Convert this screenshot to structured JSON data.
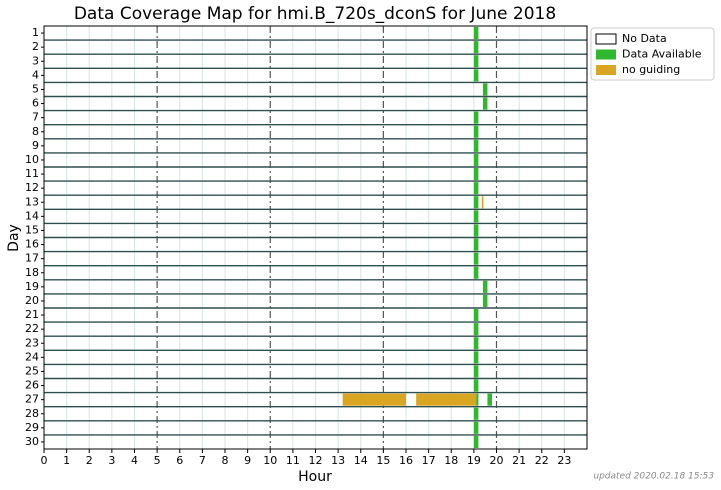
{
  "chart_data": {
    "type": "coverage",
    "title": "Data Coverage Map for hmi.B_720s_dconS for June 2018",
    "x_label": "Hour",
    "y_label": "Day",
    "footer": "updated 2020.02.18 15:53",
    "categories": [
      "1",
      "2",
      "3",
      "4",
      "5",
      "6",
      "7",
      "8",
      "9",
      "10",
      "11",
      "12",
      "13",
      "14",
      "15",
      "16",
      "17",
      "18",
      "19",
      "20",
      "21",
      "22",
      "23",
      "24",
      "25",
      "26",
      "27",
      "28",
      "29",
      "30"
    ],
    "xlim": [
      0,
      24
    ],
    "xticks": [
      0,
      1,
      2,
      3,
      4,
      5,
      6,
      7,
      8,
      9,
      10,
      11,
      12,
      13,
      14,
      15,
      16,
      17,
      18,
      19,
      20,
      21,
      22,
      23
    ],
    "series": [
      {
        "name": "No Data",
        "color": "#ffffff"
      },
      {
        "name": "Data Available",
        "color": "#2db82d",
        "values": [
          [
            [
              19.0,
              19.2
            ]
          ],
          [
            [
              19.0,
              19.2
            ]
          ],
          [
            [
              19.0,
              19.2
            ]
          ],
          [
            [
              19.0,
              19.2
            ]
          ],
          [
            [
              19.4,
              19.6
            ]
          ],
          [
            [
              19.4,
              19.6
            ]
          ],
          [
            [
              19.0,
              19.2
            ]
          ],
          [
            [
              19.0,
              19.2
            ]
          ],
          [
            [
              19.0,
              19.2
            ]
          ],
          [
            [
              19.0,
              19.2
            ]
          ],
          [
            [
              19.0,
              19.2
            ]
          ],
          [
            [
              19.0,
              19.2
            ]
          ],
          [
            [
              19.0,
              19.2
            ]
          ],
          [
            [
              19.0,
              19.2
            ]
          ],
          [
            [
              19.0,
              19.2
            ]
          ],
          [
            [
              19.0,
              19.2
            ]
          ],
          [
            [
              19.0,
              19.2
            ]
          ],
          [
            [
              19.0,
              19.2
            ]
          ],
          [
            [
              19.4,
              19.6
            ]
          ],
          [
            [
              19.4,
              19.6
            ]
          ],
          [
            [
              19.0,
              19.2
            ]
          ],
          [
            [
              19.0,
              19.2
            ]
          ],
          [
            [
              19.0,
              19.2
            ]
          ],
          [
            [
              19.0,
              19.2
            ]
          ],
          [
            [
              19.0,
              19.2
            ]
          ],
          [
            [
              19.0,
              19.2
            ]
          ],
          [
            [
              19.1,
              19.2
            ],
            [
              19.6,
              19.8
            ]
          ],
          [
            [
              19.0,
              19.2
            ]
          ],
          [
            [
              19.0,
              19.2
            ]
          ],
          [
            [
              19.0,
              19.2
            ]
          ]
        ]
      },
      {
        "name": "no guiding",
        "color": "#daa520",
        "values": [
          null,
          null,
          null,
          null,
          null,
          null,
          null,
          null,
          null,
          null,
          null,
          null,
          [
            [
              19.35,
              19.42
            ]
          ],
          null,
          null,
          null,
          null,
          null,
          null,
          null,
          null,
          null,
          null,
          null,
          null,
          null,
          [
            [
              13.2,
              16.0
            ],
            [
              16.45,
              19.1
            ]
          ],
          null,
          null,
          null
        ]
      }
    ]
  }
}
